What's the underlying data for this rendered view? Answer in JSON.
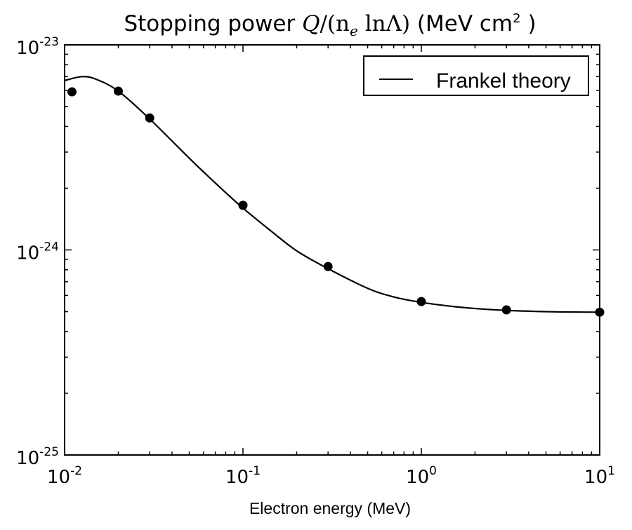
{
  "chart_data": {
    "type": "line",
    "title": {
      "prefix": "Stopping power ",
      "math_q": "Q",
      "math_mid": "/(n",
      "math_sub": "e",
      "math_ln": " ln",
      "math_end": "Λ)",
      "units_open": " (MeV cm",
      "units_sup": "2",
      "units_close": " )"
    },
    "xlabel": "Electron energy (MeV)",
    "ylabel": "",
    "xscale": "log",
    "yscale": "log",
    "xlim": [
      0.01,
      10
    ],
    "ylim": [
      1e-25,
      1e-23
    ],
    "x_ticks": [
      {
        "value": 0.01,
        "base": "10",
        "exp": "-2"
      },
      {
        "value": 0.1,
        "base": "10",
        "exp": "-1"
      },
      {
        "value": 1,
        "base": "10",
        "exp": "0"
      },
      {
        "value": 10,
        "base": "10",
        "exp": "1"
      }
    ],
    "y_ticks": [
      {
        "value": 1e-25,
        "base": "10",
        "exp": "-25"
      },
      {
        "value": 1e-24,
        "base": "10",
        "exp": "-24"
      },
      {
        "value": 1e-23,
        "base": "10",
        "exp": "-23"
      }
    ],
    "grid": false,
    "legend": {
      "position": "top-right",
      "entries": [
        "Frankel theory"
      ]
    },
    "series": [
      {
        "name": "Frankel theory",
        "style": "line",
        "color": "#000000",
        "x": [
          0.01,
          0.0125,
          0.015,
          0.02,
          0.03,
          0.05,
          0.07,
          0.1,
          0.15,
          0.2,
          0.3,
          0.5,
          0.7,
          1,
          1.5,
          2,
          3,
          5,
          7,
          10
        ],
        "y": [
          6.7e-24,
          7e-24,
          6.8e-24,
          5.95e-24,
          4.35e-24,
          2.8e-24,
          2.12e-24,
          1.6e-24,
          1.2e-24,
          9.9e-25,
          8.1e-25,
          6.5e-25,
          5.9e-25,
          5.55e-25,
          5.3e-25,
          5.18e-25,
          5.07e-25,
          5e-25,
          4.98e-25,
          4.97e-25
        ]
      },
      {
        "name": "",
        "style": "markers",
        "color": "#000000",
        "x": [
          0.011,
          0.02,
          0.03,
          0.1,
          0.3,
          1,
          3,
          10
        ],
        "y": [
          5.9e-24,
          5.95e-24,
          4.4e-24,
          1.65e-24,
          8.3e-25,
          5.6e-25,
          5.1e-25,
          4.97e-25
        ]
      }
    ]
  }
}
